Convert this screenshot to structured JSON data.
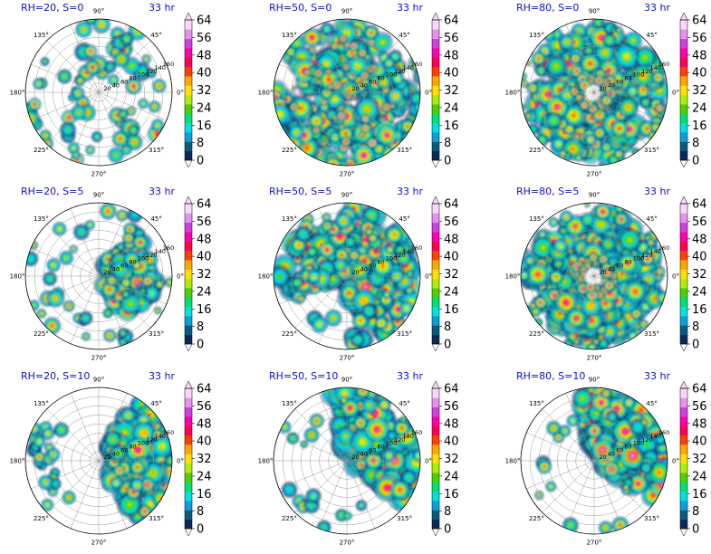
{
  "figure": {
    "time_label": "33 hr",
    "azimuth_labels": [
      "0°",
      "45°",
      "90°",
      "135°",
      "180°",
      "225°",
      "270°",
      "315°"
    ],
    "radius_labels": [
      "20",
      "40",
      "60",
      "80",
      "100",
      "120",
      "140",
      "160"
    ]
  },
  "chart_data": [
    {
      "type": "heatmap",
      "projection": "polar",
      "title": "RH=20, S=0",
      "time": "33 hr",
      "structure": "scattered-cells",
      "colorbar_ticks": [
        0,
        8,
        16,
        24,
        32,
        40,
        48,
        56,
        64
      ]
    },
    {
      "type": "heatmap",
      "projection": "polar",
      "title": "RH=50, S=0",
      "time": "33 hr",
      "structure": "broad-spiral",
      "colorbar_ticks": [
        0,
        8,
        16,
        24,
        32,
        40,
        48,
        56,
        64
      ]
    },
    {
      "type": "heatmap",
      "projection": "polar",
      "title": "RH=80, S=0",
      "time": "33 hr",
      "structure": "eyewall-ring",
      "colorbar_ticks": [
        0,
        8,
        16,
        24,
        32,
        40,
        48,
        56,
        64
      ]
    },
    {
      "type": "heatmap",
      "projection": "polar",
      "title": "RH=20, S=5",
      "time": "33 hr",
      "structure": "asymmetric-east",
      "colorbar_ticks": [
        0,
        8,
        16,
        24,
        32,
        40,
        48,
        56,
        64
      ]
    },
    {
      "type": "heatmap",
      "projection": "polar",
      "title": "RH=50, S=5",
      "time": "33 hr",
      "structure": "asymmetric-broad",
      "colorbar_ticks": [
        0,
        8,
        16,
        24,
        32,
        40,
        48,
        56,
        64
      ]
    },
    {
      "type": "heatmap",
      "projection": "polar",
      "title": "RH=80, S=5",
      "time": "33 hr",
      "structure": "eyewall-ring",
      "colorbar_ticks": [
        0,
        8,
        16,
        24,
        32,
        40,
        48,
        56,
        64
      ]
    },
    {
      "type": "heatmap",
      "projection": "polar",
      "title": "RH=20, S=10",
      "time": "33 hr",
      "structure": "east-shear",
      "colorbar_ticks": [
        0,
        8,
        16,
        24,
        32,
        40,
        48,
        56,
        64
      ]
    },
    {
      "type": "heatmap",
      "projection": "polar",
      "title": "RH=50, S=10",
      "time": "33 hr",
      "structure": "northeast-shear",
      "colorbar_ticks": [
        0,
        8,
        16,
        24,
        32,
        40,
        48,
        56,
        64
      ]
    },
    {
      "type": "heatmap",
      "projection": "polar",
      "title": "RH=80, S=10",
      "time": "33 hr",
      "structure": "northeast-shear",
      "colorbar_ticks": [
        0,
        8,
        16,
        24,
        32,
        40,
        48,
        56,
        64
      ]
    }
  ],
  "colormap": [
    "#ffffff",
    "#0c2a57",
    "#0a5a80",
    "#08a0d8",
    "#00e0e0",
    "#00e070",
    "#50d000",
    "#b0ee00",
    "#ffe000",
    "#ffa500",
    "#ff4000",
    "#ff0050",
    "#ff00b0",
    "#d040e0",
    "#e890f0",
    "#f8d8f8"
  ]
}
